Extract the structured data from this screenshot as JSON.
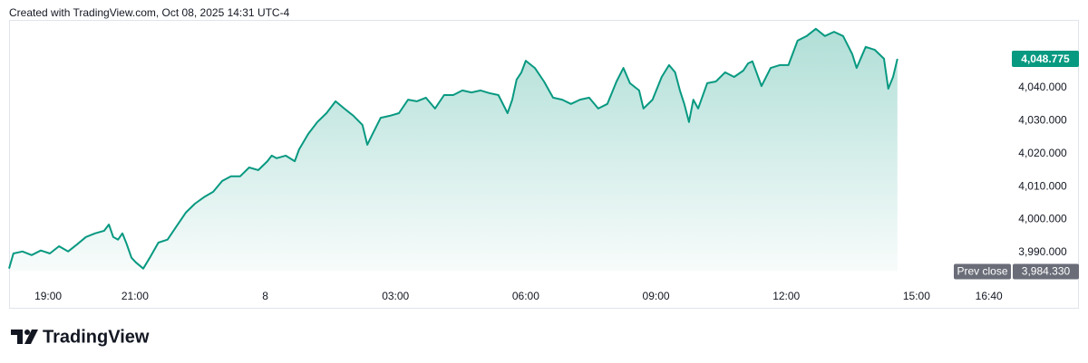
{
  "chart_data": {
    "type": "area",
    "caption": "Created with TradingView.com, Oct 08, 2025 14:31 UTC-4",
    "brand": "TradingView",
    "color": "#089981",
    "x": [
      18.1,
      18.2,
      18.41,
      18.62,
      18.83,
      19.04,
      19.25,
      19.46,
      19.67,
      19.87,
      20.08,
      20.29,
      20.4,
      20.5,
      20.61,
      20.71,
      20.81,
      20.92,
      21.02,
      21.19,
      21.34,
      21.54,
      21.75,
      21.96,
      22.17,
      22.38,
      22.59,
      22.8,
      23.01,
      23.21,
      23.42,
      23.63,
      23.84,
      24.05,
      24.15,
      24.26,
      24.47,
      24.68,
      24.78,
      24.99,
      25.2,
      25.41,
      25.62,
      25.82,
      26.03,
      26.24,
      26.35,
      26.45,
      26.66,
      26.87,
      27.08,
      27.29,
      27.49,
      27.7,
      27.91,
      28.12,
      28.33,
      28.54,
      28.75,
      28.96,
      29.16,
      29.37,
      29.58,
      29.69,
      29.79,
      29.9,
      30.0,
      30.21,
      30.42,
      30.63,
      30.84,
      31.04,
      31.25,
      31.46,
      31.67,
      31.88,
      32.09,
      32.25,
      32.4,
      32.61,
      32.71,
      32.92,
      33.13,
      33.3,
      33.44,
      33.55,
      33.65,
      33.76,
      33.86,
      33.97,
      34.18,
      34.38,
      34.59,
      34.8,
      35.01,
      35.12,
      35.22,
      35.43,
      35.64,
      35.85,
      36.05,
      36.26,
      36.47,
      36.68,
      36.89,
      37.1,
      37.31,
      37.52,
      37.62,
      37.83,
      38.04,
      38.25,
      38.35,
      38.46,
      38.56
    ],
    "values": [
      3985.1,
      3989.7,
      3990.3,
      3989.2,
      3990.6,
      3989.7,
      3991.9,
      3990.3,
      3992.5,
      3994.7,
      3995.8,
      3996.6,
      3998.5,
      3994.7,
      3993.9,
      3995.8,
      3992.5,
      3988.4,
      3987.0,
      3985.1,
      3988.4,
      3993.0,
      3993.9,
      3998.0,
      4002.1,
      4004.8,
      4006.8,
      4008.4,
      4011.7,
      4013.1,
      4013.1,
      4015.8,
      4015.0,
      4017.7,
      4019.4,
      4018.6,
      4019.4,
      4017.7,
      4021.3,
      4026.0,
      4029.6,
      4032.3,
      4035.9,
      4033.7,
      4031.5,
      4028.7,
      4022.7,
      4025.4,
      4030.9,
      4031.5,
      4032.3,
      4036.4,
      4035.9,
      4037.0,
      4033.7,
      4037.8,
      4037.8,
      4039.2,
      4038.6,
      4039.2,
      4038.4,
      4037.8,
      4032.3,
      4036.4,
      4042.5,
      4044.7,
      4048.2,
      4046.0,
      4041.9,
      4037.0,
      4036.4,
      4035.1,
      4036.4,
      4037.0,
      4033.7,
      4035.1,
      4041.9,
      4046.0,
      4041.4,
      4039.2,
      4033.7,
      4036.4,
      4043.3,
      4046.9,
      4044.7,
      4039.2,
      4035.1,
      4029.6,
      4036.4,
      4033.7,
      4041.4,
      4041.9,
      4044.7,
      4043.3,
      4045.2,
      4047.4,
      4048.0,
      4040.5,
      4046.0,
      4046.9,
      4046.9,
      4054.3,
      4055.7,
      4057.9,
      4055.7,
      4057.0,
      4055.7,
      4050.2,
      4046.0,
      4052.4,
      4051.5,
      4048.8,
      4039.7,
      4043.3,
      4048.775
    ],
    "xlim": [
      18.1,
      41.07
    ],
    "xticks": [
      {
        "value": 19,
        "label": "19:00"
      },
      {
        "value": 21,
        "label": "21:00"
      },
      {
        "value": 24,
        "label": "8"
      },
      {
        "value": 27,
        "label": "03:00"
      },
      {
        "value": 30,
        "label": "06:00"
      },
      {
        "value": 33,
        "label": "09:00"
      },
      {
        "value": 36,
        "label": "12:00"
      },
      {
        "value": 39,
        "label": "15:00"
      },
      {
        "value": 40.667,
        "label": "16:40"
      }
    ],
    "ylim": [
      3984.2,
      4060.6
    ],
    "yticks": [
      {
        "value": 3990,
        "label": "3,990.000"
      },
      {
        "value": 4000,
        "label": "4,000.000"
      },
      {
        "value": 4010,
        "label": "4,010.000"
      },
      {
        "value": 4020,
        "label": "4,020.000"
      },
      {
        "value": 4030,
        "label": "4,030.000"
      },
      {
        "value": 4040,
        "label": "4,040.000"
      }
    ],
    "last_price": {
      "value": 4048.775,
      "label": "4,048.775"
    },
    "prev_close": {
      "name": "Prev close",
      "value": 3984.33,
      "label": "3,984.330"
    }
  }
}
